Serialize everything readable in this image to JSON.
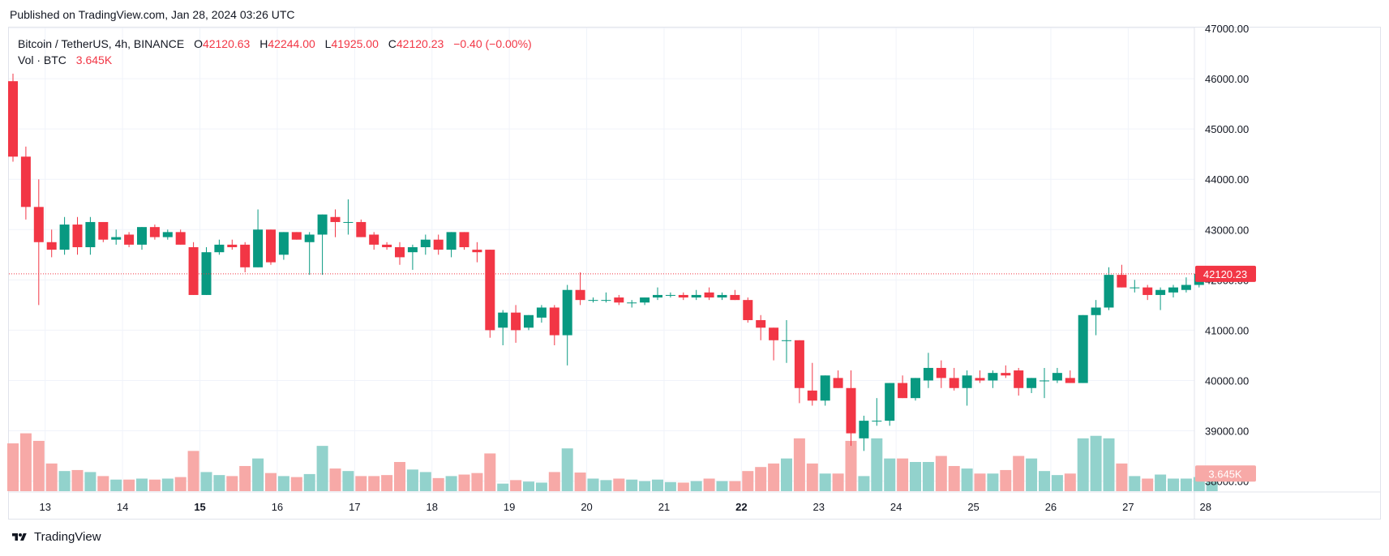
{
  "published": "Published on TradingView.com, Jan 28, 2024 03:26 UTC",
  "legend": {
    "symbol": "Bitcoin / TetherUS, 4h, BINANCE",
    "o_label": "O",
    "o_value": "42120.63",
    "h_label": "H",
    "h_value": "42244.00",
    "l_label": "L",
    "l_value": "41925.00",
    "c_label": "C",
    "c_value": "42120.23",
    "change": "−0.40 (−0.00%)",
    "vol_label": "Vol · BTC",
    "vol_value": "3.645K"
  },
  "footer": {
    "brand": "TradingView",
    "icon": "tradingview-logo-icon"
  },
  "colors": {
    "up": "#089981",
    "down": "#f23645",
    "up_vol": "#92d2cc",
    "down_vol": "#f7a9a7"
  },
  "chart_data": {
    "type": "candlestick",
    "price_ticks": [
      "47000.00",
      "46000.00",
      "45000.00",
      "44000.00",
      "43000.00",
      "42000.00",
      "41000.00",
      "40000.00",
      "39000.00",
      "38000.00"
    ],
    "ylim": [
      37800,
      47000
    ],
    "last_price_label": "42120.23",
    "last_volume_label": "3.645K",
    "x_ticks": [
      {
        "label": "13",
        "bold": false,
        "index": 2.5
      },
      {
        "label": "14",
        "bold": false,
        "index": 8.5
      },
      {
        "label": "15",
        "bold": true,
        "index": 14.5
      },
      {
        "label": "16",
        "bold": false,
        "index": 20.5
      },
      {
        "label": "17",
        "bold": false,
        "index": 26.5
      },
      {
        "label": "18",
        "bold": false,
        "index": 32.5
      },
      {
        "label": "19",
        "bold": false,
        "index": 38.5
      },
      {
        "label": "20",
        "bold": false,
        "index": 44.5
      },
      {
        "label": "21",
        "bold": false,
        "index": 50.5
      },
      {
        "label": "22",
        "bold": true,
        "index": 56.5
      },
      {
        "label": "23",
        "bold": false,
        "index": 62.5
      },
      {
        "label": "24",
        "bold": false,
        "index": 68.5
      },
      {
        "label": "25",
        "bold": false,
        "index": 74.5
      },
      {
        "label": "26",
        "bold": false,
        "index": 80.5
      },
      {
        "label": "27",
        "bold": false,
        "index": 86.5
      },
      {
        "label": "28",
        "bold": false,
        "index": 92.5
      }
    ],
    "candles": [
      {
        "o": 45950,
        "h": 46100,
        "l": 44350,
        "c": 44450,
        "v": 38750
      },
      {
        "o": 44450,
        "h": 44650,
        "l": 43200,
        "c": 43450,
        "v": 38950
      },
      {
        "o": 43450,
        "h": 44000,
        "l": 41500,
        "c": 42750,
        "v": 38800
      },
      {
        "o": 42750,
        "h": 43000,
        "l": 42450,
        "c": 42600,
        "v": 38350
      },
      {
        "o": 42600,
        "h": 43250,
        "l": 42500,
        "c": 43100,
        "v": 38200
      },
      {
        "o": 43100,
        "h": 43250,
        "l": 42500,
        "c": 42650,
        "v": 38220
      },
      {
        "o": 42650,
        "h": 43250,
        "l": 42500,
        "c": 43150,
        "v": 38180
      },
      {
        "o": 43150,
        "h": 43150,
        "l": 42750,
        "c": 42800,
        "v": 38100
      },
      {
        "o": 42800,
        "h": 43000,
        "l": 42700,
        "c": 42850,
        "v": 38030
      },
      {
        "o": 42900,
        "h": 42950,
        "l": 42650,
        "c": 42700,
        "v": 38030
      },
      {
        "o": 42700,
        "h": 43050,
        "l": 42600,
        "c": 43050,
        "v": 38050
      },
      {
        "o": 43050,
        "h": 43100,
        "l": 42800,
        "c": 42850,
        "v": 38030
      },
      {
        "o": 42850,
        "h": 43000,
        "l": 42800,
        "c": 42950,
        "v": 38050
      },
      {
        "o": 42950,
        "h": 43000,
        "l": 42700,
        "c": 42700,
        "v": 38080
      },
      {
        "o": 42650,
        "h": 42750,
        "l": 41700,
        "c": 41700,
        "v": 38600
      },
      {
        "o": 41700,
        "h": 42650,
        "l": 41700,
        "c": 42550,
        "v": 38180
      },
      {
        "o": 42550,
        "h": 42800,
        "l": 42500,
        "c": 42700,
        "v": 38120
      },
      {
        "o": 42700,
        "h": 42800,
        "l": 42600,
        "c": 42650,
        "v": 38100
      },
      {
        "o": 42700,
        "h": 42750,
        "l": 42150,
        "c": 42250,
        "v": 38300
      },
      {
        "o": 42250,
        "h": 43400,
        "l": 42250,
        "c": 43000,
        "v": 38450
      },
      {
        "o": 43000,
        "h": 43000,
        "l": 42300,
        "c": 42350,
        "v": 38160
      },
      {
        "o": 42500,
        "h": 42950,
        "l": 42400,
        "c": 42950,
        "v": 38100
      },
      {
        "o": 42950,
        "h": 42950,
        "l": 42800,
        "c": 42800,
        "v": 38080
      },
      {
        "o": 42750,
        "h": 42950,
        "l": 42100,
        "c": 42900,
        "v": 38140
      },
      {
        "o": 42900,
        "h": 43300,
        "l": 42100,
        "c": 43300,
        "v": 38700
      },
      {
        "o": 43250,
        "h": 43400,
        "l": 42850,
        "c": 43150,
        "v": 38250
      },
      {
        "o": 43150,
        "h": 43600,
        "l": 42900,
        "c": 43150,
        "v": 38200
      },
      {
        "o": 43150,
        "h": 43200,
        "l": 42850,
        "c": 42850,
        "v": 38100
      },
      {
        "o": 42900,
        "h": 42950,
        "l": 42600,
        "c": 42700,
        "v": 38100
      },
      {
        "o": 42700,
        "h": 42750,
        "l": 42600,
        "c": 42650,
        "v": 38120
      },
      {
        "o": 42650,
        "h": 42750,
        "l": 42300,
        "c": 42450,
        "v": 38380
      },
      {
        "o": 42550,
        "h": 42700,
        "l": 42200,
        "c": 42650,
        "v": 38230
      },
      {
        "o": 42650,
        "h": 42900,
        "l": 42500,
        "c": 42800,
        "v": 38180
      },
      {
        "o": 42800,
        "h": 42900,
        "l": 42500,
        "c": 42600,
        "v": 38060
      },
      {
        "o": 42600,
        "h": 42950,
        "l": 42450,
        "c": 42950,
        "v": 38100
      },
      {
        "o": 42950,
        "h": 42950,
        "l": 42600,
        "c": 42650,
        "v": 38130
      },
      {
        "o": 42600,
        "h": 42750,
        "l": 42350,
        "c": 42550,
        "v": 38160
      },
      {
        "o": 42600,
        "h": 42600,
        "l": 40850,
        "c": 41000,
        "v": 38550
      },
      {
        "o": 41050,
        "h": 41400,
        "l": 40700,
        "c": 41350,
        "v": 37950
      },
      {
        "o": 41350,
        "h": 41500,
        "l": 40750,
        "c": 41000,
        "v": 38020
      },
      {
        "o": 41050,
        "h": 41300,
        "l": 41000,
        "c": 41300,
        "v": 37990
      },
      {
        "o": 41250,
        "h": 41500,
        "l": 41150,
        "c": 41450,
        "v": 37970
      },
      {
        "o": 41450,
        "h": 41500,
        "l": 40700,
        "c": 40900,
        "v": 38180
      },
      {
        "o": 40900,
        "h": 41900,
        "l": 40300,
        "c": 41800,
        "v": 38650
      },
      {
        "o": 41800,
        "h": 42150,
        "l": 41500,
        "c": 41600,
        "v": 38170
      },
      {
        "o": 41600,
        "h": 41650,
        "l": 41550,
        "c": 41600,
        "v": 38050
      },
      {
        "o": 41600,
        "h": 41750,
        "l": 41550,
        "c": 41600,
        "v": 38020
      },
      {
        "o": 41650,
        "h": 41700,
        "l": 41500,
        "c": 41550,
        "v": 38050
      },
      {
        "o": 41550,
        "h": 41600,
        "l": 41450,
        "c": 41550,
        "v": 38030
      },
      {
        "o": 41550,
        "h": 41650,
        "l": 41500,
        "c": 41650,
        "v": 38000
      },
      {
        "o": 41650,
        "h": 41850,
        "l": 41600,
        "c": 41700,
        "v": 38030
      },
      {
        "o": 41700,
        "h": 41750,
        "l": 41650,
        "c": 41700,
        "v": 37980
      },
      {
        "o": 41700,
        "h": 41750,
        "l": 41600,
        "c": 41650,
        "v": 37970
      },
      {
        "o": 41650,
        "h": 41800,
        "l": 41600,
        "c": 41700,
        "v": 38000
      },
      {
        "o": 41750,
        "h": 41850,
        "l": 41600,
        "c": 41650,
        "v": 38050
      },
      {
        "o": 41650,
        "h": 41750,
        "l": 41600,
        "c": 41700,
        "v": 38000
      },
      {
        "o": 41700,
        "h": 41800,
        "l": 41600,
        "c": 41600,
        "v": 38000
      },
      {
        "o": 41600,
        "h": 41650,
        "l": 41150,
        "c": 41200,
        "v": 38200
      },
      {
        "o": 41200,
        "h": 41300,
        "l": 40800,
        "c": 41050,
        "v": 38280
      },
      {
        "o": 41050,
        "h": 41050,
        "l": 40400,
        "c": 40800,
        "v": 38350
      },
      {
        "o": 40800,
        "h": 41200,
        "l": 40350,
        "c": 40800,
        "v": 38450
      },
      {
        "o": 40800,
        "h": 40800,
        "l": 39550,
        "c": 39850,
        "v": 38850
      },
      {
        "o": 39800,
        "h": 40350,
        "l": 39500,
        "c": 39600,
        "v": 38350
      },
      {
        "o": 39600,
        "h": 40100,
        "l": 39500,
        "c": 40100,
        "v": 38150
      },
      {
        "o": 40050,
        "h": 40200,
        "l": 39850,
        "c": 39850,
        "v": 38150
      },
      {
        "o": 39850,
        "h": 40200,
        "l": 38700,
        "c": 38950,
        "v": 38800
      },
      {
        "o": 38850,
        "h": 39300,
        "l": 38600,
        "c": 39200,
        "v": 38100
      },
      {
        "o": 39200,
        "h": 39650,
        "l": 39100,
        "c": 39200,
        "v": 38850
      },
      {
        "o": 39200,
        "h": 39950,
        "l": 39100,
        "c": 39950,
        "v": 38450
      },
      {
        "o": 39950,
        "h": 40100,
        "l": 39650,
        "c": 39650,
        "v": 38450
      },
      {
        "o": 39650,
        "h": 40050,
        "l": 39600,
        "c": 40050,
        "v": 38380
      },
      {
        "o": 40000,
        "h": 40550,
        "l": 39850,
        "c": 40250,
        "v": 38380
      },
      {
        "o": 40250,
        "h": 40400,
        "l": 39850,
        "c": 40050,
        "v": 38500
      },
      {
        "o": 40050,
        "h": 40250,
        "l": 39800,
        "c": 39850,
        "v": 38300
      },
      {
        "o": 39850,
        "h": 40200,
        "l": 39500,
        "c": 40100,
        "v": 38250
      },
      {
        "o": 40050,
        "h": 40200,
        "l": 39950,
        "c": 40000,
        "v": 38150
      },
      {
        "o": 40000,
        "h": 40200,
        "l": 39850,
        "c": 40150,
        "v": 38150
      },
      {
        "o": 40150,
        "h": 40300,
        "l": 40050,
        "c": 40100,
        "v": 38220
      },
      {
        "o": 40200,
        "h": 40250,
        "l": 39700,
        "c": 39850,
        "v": 38500
      },
      {
        "o": 39850,
        "h": 40050,
        "l": 39750,
        "c": 40050,
        "v": 38450
      },
      {
        "o": 40000,
        "h": 40250,
        "l": 39650,
        "c": 40000,
        "v": 38200
      },
      {
        "o": 40000,
        "h": 40250,
        "l": 39950,
        "c": 40150,
        "v": 38120
      },
      {
        "o": 40050,
        "h": 40200,
        "l": 39950,
        "c": 39950,
        "v": 38150
      },
      {
        "o": 39950,
        "h": 41300,
        "l": 39950,
        "c": 41300,
        "v": 38850
      },
      {
        "o": 41300,
        "h": 41600,
        "l": 40900,
        "c": 41450,
        "v": 38900
      },
      {
        "o": 41450,
        "h": 42250,
        "l": 41400,
        "c": 42100,
        "v": 38850
      },
      {
        "o": 42100,
        "h": 42300,
        "l": 41850,
        "c": 41850,
        "v": 38350
      },
      {
        "o": 41850,
        "h": 42000,
        "l": 41750,
        "c": 41850,
        "v": 38100
      },
      {
        "o": 41850,
        "h": 41900,
        "l": 41600,
        "c": 41700,
        "v": 38050
      },
      {
        "o": 41700,
        "h": 41850,
        "l": 41400,
        "c": 41800,
        "v": 38130
      },
      {
        "o": 41750,
        "h": 41900,
        "l": 41650,
        "c": 41850,
        "v": 38050
      },
      {
        "o": 41800,
        "h": 42050,
        "l": 41750,
        "c": 41900,
        "v": 38050
      },
      {
        "o": 41900,
        "h": 42200,
        "l": 41850,
        "c": 42120,
        "v": 38080
      },
      {
        "o": 42120,
        "h": 42244,
        "l": 41925,
        "c": 42120,
        "v": 38150
      }
    ]
  }
}
